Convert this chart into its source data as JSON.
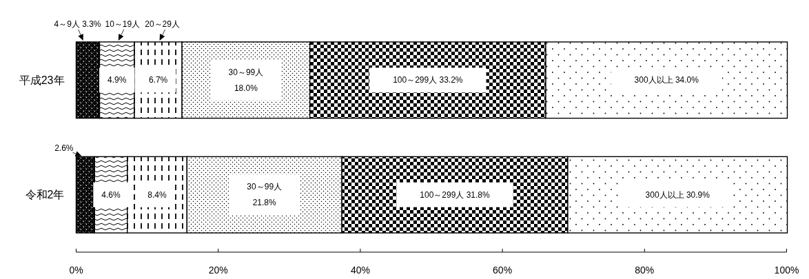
{
  "chart_data": {
    "type": "bar",
    "orientation": "horizontal",
    "stacked": true,
    "categories": [
      "平成23年",
      "令和2年"
    ],
    "series": [
      {
        "name": "4～9人",
        "color": "#000000",
        "values": [
          3.3,
          2.6
        ],
        "value_labels": [
          "3.3%",
          "2.6%"
        ]
      },
      {
        "name": "10～19人",
        "color": "#000000",
        "values": [
          4.9,
          4.6
        ],
        "value_labels": [
          "4.9%",
          "4.6%"
        ]
      },
      {
        "name": "20～29人",
        "color": "#000000",
        "values": [
          6.7,
          8.4
        ],
        "value_labels": [
          "6.7%",
          "8.4%"
        ]
      },
      {
        "name": "30～99人",
        "color": "#000000",
        "values": [
          18.0,
          21.8
        ],
        "value_labels": [
          "18.0%",
          "21.8%"
        ]
      },
      {
        "name": "100～299人",
        "color": "#000000",
        "values": [
          33.2,
          31.8
        ],
        "value_labels": [
          "33.2%",
          "31.8%"
        ]
      },
      {
        "name": "300人以上",
        "color": "#000000",
        "values": [
          34.0,
          30.9
        ],
        "value_labels": [
          "34.0%",
          "30.9%"
        ]
      }
    ],
    "xlim": [
      0,
      100
    ],
    "xticks": [
      {
        "value": 0,
        "label": "0%"
      },
      {
        "value": 20,
        "label": "20%"
      },
      {
        "value": 40,
        "label": "40%"
      },
      {
        "value": 60,
        "label": "60%"
      },
      {
        "value": 80,
        "label": "80%"
      },
      {
        "value": 100,
        "label": "100%"
      }
    ]
  }
}
